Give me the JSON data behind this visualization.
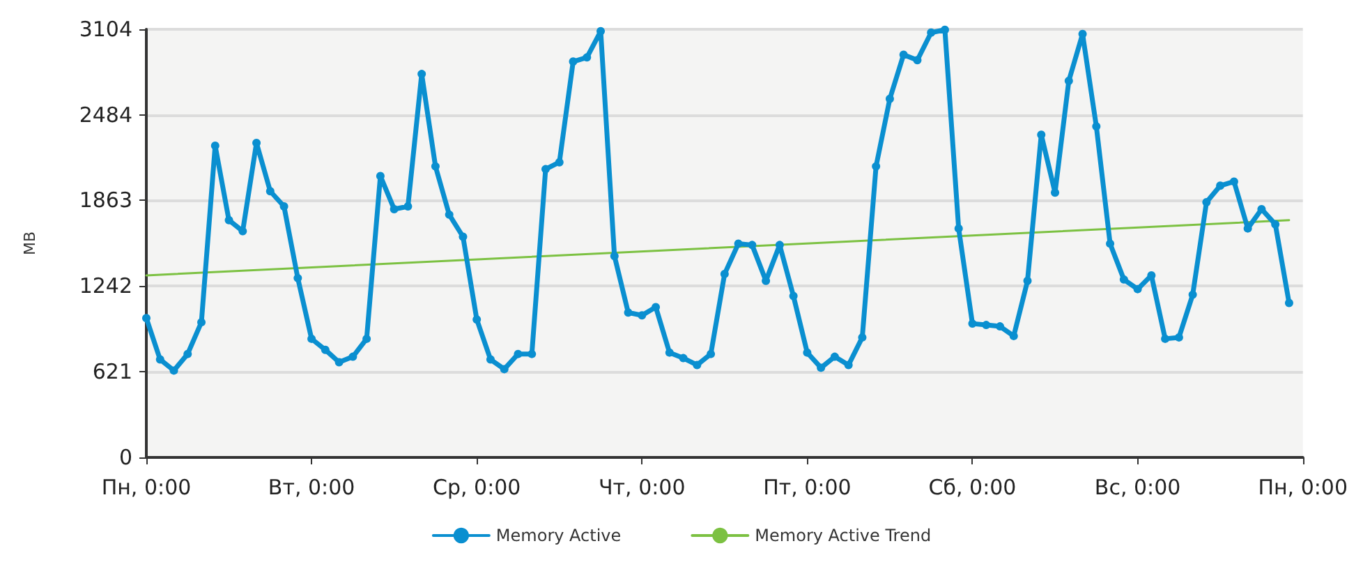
{
  "chart_data": {
    "type": "line",
    "ylabel": "MB",
    "categories": [
      "Пн, 0:00",
      null,
      null,
      null,
      null,
      null,
      null,
      null,
      null,
      null,
      null,
      null,
      "Вт, 0:00",
      null,
      null,
      null,
      null,
      null,
      null,
      null,
      null,
      null,
      null,
      null,
      "Ср, 0:00",
      null,
      null,
      null,
      null,
      null,
      null,
      null,
      null,
      null,
      null,
      null,
      "Чт, 0:00",
      null,
      null,
      null,
      null,
      null,
      null,
      null,
      null,
      null,
      null,
      null,
      "Пт, 0:00",
      null,
      null,
      null,
      null,
      null,
      null,
      null,
      null,
      null,
      null,
      null,
      "Сб, 0:00",
      null,
      null,
      null,
      null,
      null,
      null,
      null,
      null,
      null,
      null,
      null,
      "Вс, 0:00",
      null,
      null,
      null,
      null,
      null,
      null,
      null,
      null,
      null,
      null,
      null,
      "Пн, 0:00"
    ],
    "series": [
      {
        "name": "Memory Active",
        "color": "#0a8fd0",
        "marker": "circle",
        "values": [
          1010,
          710,
          630,
          750,
          980,
          2260,
          1720,
          1640,
          2280,
          1930,
          1820,
          1300,
          860,
          780,
          690,
          730,
          860,
          2040,
          1800,
          1820,
          2780,
          2110,
          1760,
          1600,
          1000,
          710,
          640,
          750,
          750,
          2090,
          2140,
          2870,
          2900,
          3090,
          1460,
          1050,
          1030,
          1090,
          760,
          720,
          670,
          750,
          1330,
          1550,
          1540,
          1280,
          1540,
          1170,
          760,
          650,
          730,
          670,
          870,
          2110,
          2600,
          2920,
          2880,
          3080,
          3100,
          1660,
          970,
          960,
          950,
          880,
          1280,
          2340,
          1920,
          2730,
          3070,
          2400,
          1550,
          1290,
          1220,
          1320,
          860,
          870,
          1180,
          1850,
          1970,
          2000,
          1660,
          1800,
          1690,
          1120,
          null
        ]
      },
      {
        "name": "Memory Active Trend",
        "color": "#7cc142",
        "marker": "none",
        "values": [
          1320,
          null,
          null,
          null,
          null,
          null,
          null,
          null,
          null,
          null,
          null,
          null,
          null,
          null,
          null,
          null,
          null,
          null,
          null,
          null,
          null,
          null,
          null,
          null,
          null,
          null,
          null,
          null,
          null,
          null,
          null,
          null,
          null,
          null,
          null,
          null,
          null,
          null,
          null,
          null,
          null,
          null,
          null,
          null,
          null,
          null,
          null,
          null,
          null,
          null,
          null,
          null,
          null,
          null,
          null,
          null,
          null,
          null,
          null,
          null,
          null,
          null,
          null,
          null,
          null,
          null,
          null,
          null,
          null,
          null,
          null,
          null,
          null,
          null,
          null,
          null,
          null,
          null,
          null,
          null,
          null,
          null,
          null,
          1720,
          null
        ]
      }
    ],
    "ylim": [
      0,
      3104
    ],
    "yticks": [
      0,
      621,
      1242,
      1863,
      2484,
      3104
    ],
    "grid": "y",
    "legend": "bottom"
  }
}
